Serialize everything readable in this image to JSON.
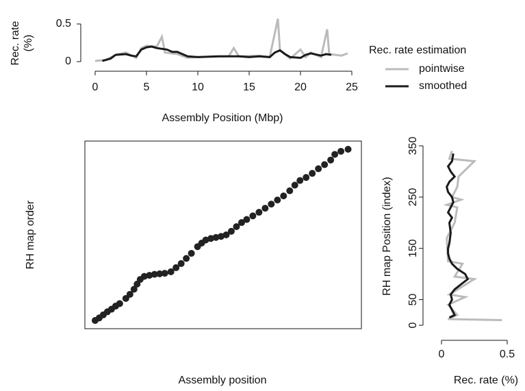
{
  "chart_data": [
    {
      "type": "line",
      "xlabel": "Assembly Position (Mbp)",
      "ylabel": [
        "Rec. rate",
        "(%)"
      ],
      "xlim": [
        0,
        25
      ],
      "ylim": [
        0,
        0.5
      ],
      "xticks": [
        0,
        5,
        10,
        15,
        20,
        25
      ],
      "yticks": [
        0,
        0.5
      ],
      "legend_title": "Rec. rate estimation",
      "legend": "right",
      "series": [
        {
          "name": "pointwise",
          "color": "#bbbbbb",
          "x": [
            0,
            1,
            2,
            3,
            4,
            4.5,
            5,
            6,
            6.5,
            6.8,
            8,
            9,
            10,
            13,
            13.5,
            14,
            16,
            17,
            17.8,
            18,
            19,
            20,
            20.5,
            21,
            22,
            22.6,
            22.8,
            24,
            24.6
          ],
          "values": [
            0.01,
            0.02,
            0.09,
            0.12,
            0.05,
            0.18,
            0.21,
            0.2,
            0.33,
            0.12,
            0.1,
            0.05,
            0.06,
            0.07,
            0.18,
            0.07,
            0.08,
            0.06,
            0.57,
            0.15,
            0.04,
            0.16,
            0.06,
            0.12,
            0.06,
            0.43,
            0.1,
            0.08,
            0.11
          ]
        },
        {
          "name": "smoothed",
          "color": "#1a1a1a",
          "x": [
            0.7,
            1.5,
            2,
            3,
            3.5,
            4,
            4.5,
            5,
            5.5,
            6,
            7,
            7.5,
            8,
            8.5,
            9,
            10,
            12,
            14,
            15,
            16,
            17,
            17.5,
            18,
            18.5,
            19,
            20,
            20.5,
            21,
            22,
            22.5,
            23
          ],
          "values": [
            0.01,
            0.04,
            0.09,
            0.1,
            0.08,
            0.07,
            0.16,
            0.19,
            0.2,
            0.18,
            0.16,
            0.13,
            0.13,
            0.1,
            0.07,
            0.06,
            0.07,
            0.07,
            0.06,
            0.07,
            0.06,
            0.12,
            0.15,
            0.1,
            0.06,
            0.05,
            0.09,
            0.11,
            0.08,
            0.1,
            0.09
          ]
        }
      ]
    },
    {
      "type": "scatter",
      "xlabel": "Assembly position",
      "ylabel": "RH map order",
      "xlim": [
        -1,
        26
      ],
      "ylim": [
        -7,
        359
      ],
      "color": "#222222",
      "x": [
        0,
        0.4,
        0.8,
        1.2,
        1.6,
        2,
        2.4,
        3,
        3.4,
        3.8,
        4.1,
        4.4,
        4.8,
        5.3,
        5.8,
        6.3,
        6.8,
        7.4,
        7.9,
        8.4,
        8.9,
        9.4,
        10,
        10.4,
        10.8,
        11.3,
        11.8,
        12.3,
        12.8,
        13.3,
        13.8,
        14.3,
        14.8,
        15.4,
        16,
        16.6,
        17.2,
        17.8,
        18.4,
        19,
        19.5,
        20,
        20.6,
        21.2,
        21.8,
        22.4,
        23,
        23.4,
        24,
        24.7
      ],
      "values": [
        9,
        14,
        20,
        26,
        31,
        37,
        42,
        52,
        60,
        70,
        80,
        89,
        95,
        97,
        99,
        100,
        101,
        104,
        112,
        120,
        130,
        140,
        153,
        160,
        166,
        169,
        171,
        173,
        176,
        183,
        192,
        200,
        206,
        213,
        220,
        228,
        236,
        244,
        252,
        262,
        273,
        282,
        288,
        296,
        305,
        313,
        322,
        333,
        339,
        343
      ]
    },
    {
      "type": "line",
      "orientation": "vertical",
      "xlabel": "Rec. rate (%)",
      "ylabel": "RH map Position (index)",
      "xlim": [
        0,
        0.5
      ],
      "ylim": [
        0,
        350
      ],
      "xticks": [
        0,
        0.5
      ],
      "yticks": [
        0,
        50,
        150,
        250,
        350
      ],
      "series": [
        {
          "name": "pointwise",
          "color": "#bbbbbb",
          "x": [
            10,
            12,
            20,
            40,
            55,
            60,
            90,
            95,
            120,
            125,
            170,
            200,
            230,
            235,
            245,
            250,
            270,
            290,
            320,
            325,
            340
          ],
          "values": [
            0.46,
            0.05,
            0.12,
            0.05,
            0.18,
            0.06,
            0.25,
            0.1,
            0.16,
            0.05,
            0.04,
            0.1,
            0.12,
            0.04,
            0.15,
            0.08,
            0.12,
            0.13,
            0.25,
            0.06,
            0.08
          ]
        },
        {
          "name": "smoothed",
          "color": "#1a1a1a",
          "x": [
            15,
            20,
            30,
            40,
            50,
            60,
            70,
            80,
            90,
            100,
            110,
            120,
            130,
            140,
            150,
            160,
            180,
            200,
            210,
            220,
            230,
            240,
            250,
            260,
            270,
            280,
            290,
            300,
            310,
            320,
            335
          ],
          "values": [
            0.06,
            0.1,
            0.08,
            0.06,
            0.08,
            0.07,
            0.1,
            0.15,
            0.2,
            0.18,
            0.12,
            0.08,
            0.06,
            0.05,
            0.05,
            0.06,
            0.07,
            0.06,
            0.08,
            0.05,
            0.07,
            0.09,
            0.08,
            0.05,
            0.04,
            0.06,
            0.1,
            0.07,
            0.05,
            0.08,
            0.09
          ]
        }
      ]
    }
  ]
}
